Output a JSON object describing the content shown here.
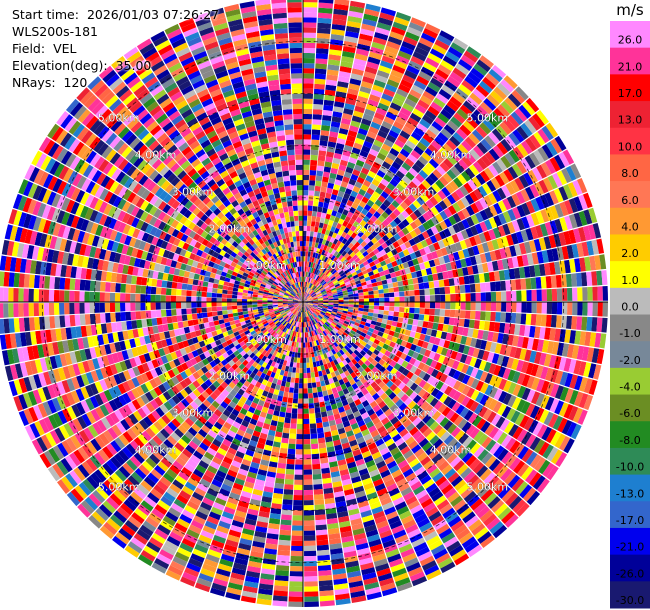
{
  "header": {
    "start_time_label": "Start time:",
    "start_time": "2026/01/03 07:26:27",
    "station": "WLS200s-181",
    "field_label": "Field:",
    "field": "VEL",
    "elevation_label": "Elevation(deg):",
    "elevation": "35.00",
    "nrays_label": "NRays:",
    "nrays": "120"
  },
  "chart_data": {
    "type": "ppi-polar",
    "field": "VEL",
    "nrays": 120,
    "elevation_deg": 35.0,
    "range_rings_km": [
      1.0,
      2.0,
      3.0,
      4.0,
      5.0
    ],
    "ring_labels": [
      "1.00km",
      "2.00km",
      "3.00km",
      "4.00km",
      "5.00km"
    ],
    "max_range_km": 5.85,
    "rings_labeled_on_diagonals": true,
    "colorbar": {
      "unit": "m/s",
      "vmin": -30.0,
      "vmax": 30.0,
      "ticks": [
        "26.0",
        "21.0",
        "17.0",
        "13.0",
        "10.0",
        "8.0",
        "6.0",
        "4.0",
        "2.0",
        "1.0",
        "0.0",
        "-1.0",
        "-2.0",
        "-4.0",
        "-6.0",
        "-8.0",
        "-10.0",
        "-13.0",
        "-17.0",
        "-21.0",
        "-26.0",
        "-30.0"
      ],
      "colors": [
        "#FF88FF",
        "#FF3399",
        "#FF0000",
        "#EE2233",
        "#FF3344",
        "#FF6644",
        "#FF7755",
        "#FF9933",
        "#FFCC00",
        "#FFFF00",
        "#BBBBBB",
        "#888888",
        "#778899",
        "#99CC33",
        "#6B8E23",
        "#228B22",
        "#2E8B57",
        "#1E7FD0",
        "#3366CC",
        "#0000EE",
        "#000099",
        "#191970"
      ]
    }
  }
}
